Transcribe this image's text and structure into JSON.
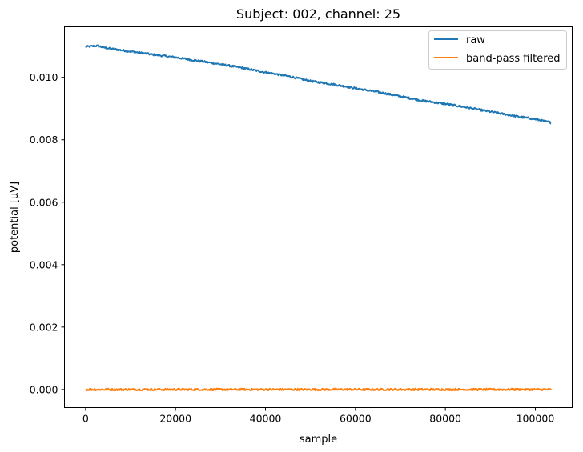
{
  "chart_data": {
    "type": "line",
    "title": "Subject: 002, channel: 25",
    "xlabel": "sample",
    "ylabel": "potential [μV]",
    "xlim": [
      -4700,
      108200
    ],
    "ylim": [
      -0.00058,
      0.01162
    ],
    "x_ticks": [
      0,
      20000,
      40000,
      60000,
      80000,
      100000
    ],
    "x_tick_labels": [
      "0",
      "20000",
      "40000",
      "60000",
      "80000",
      "100000"
    ],
    "y_ticks": [
      0.0,
      0.002,
      0.004,
      0.006,
      0.008,
      0.01
    ],
    "y_tick_labels": [
      "0.000",
      "0.002",
      "0.004",
      "0.006",
      "0.008",
      "0.010"
    ],
    "legend_position": "top-right",
    "grid": false,
    "series": [
      {
        "name": "raw",
        "color": "#1f77b4",
        "x": [
          0,
          2500,
          5000,
          10000,
          15000,
          20000,
          25000,
          30000,
          35000,
          40000,
          45000,
          50000,
          55000,
          60000,
          65000,
          70000,
          75000,
          80000,
          85000,
          90000,
          95000,
          100000,
          103500
        ],
        "y": [
          0.01098,
          0.01101,
          0.01093,
          0.01083,
          0.01073,
          0.01064,
          0.01053,
          0.01042,
          0.0103,
          0.01016,
          0.01004,
          0.00988,
          0.00978,
          0.00965,
          0.00953,
          0.00939,
          0.00925,
          0.00915,
          0.00903,
          0.0089,
          0.00877,
          0.00866,
          0.00855
        ]
      },
      {
        "name": "band-pass filtered",
        "color": "#ff7f0e",
        "x": [
          0,
          103500
        ],
        "y": [
          0.0,
          0.0
        ]
      }
    ]
  }
}
